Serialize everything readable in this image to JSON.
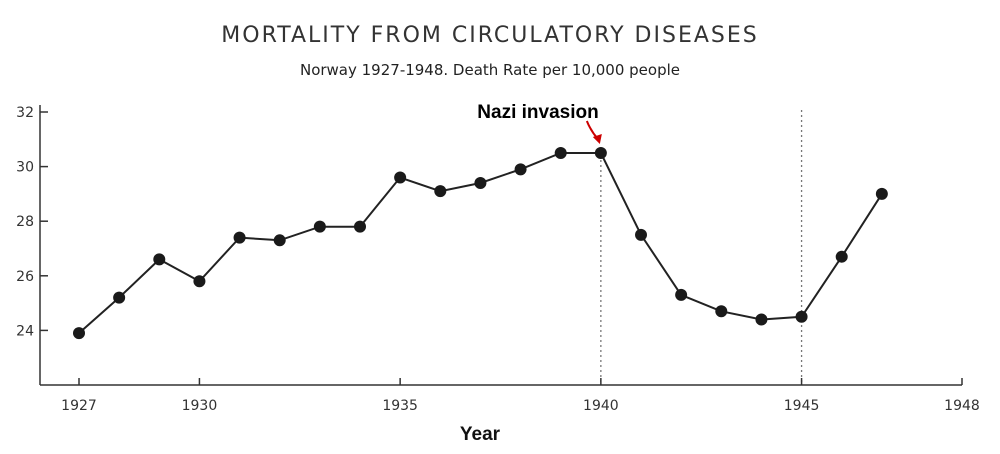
{
  "chart_data": {
    "type": "line",
    "title": "MORTALITY FROM CIRCULATORY DISEASES",
    "subtitle": "Norway 1927-1948. Death Rate per 10,000 people",
    "xlabel": "Year",
    "ylabel": "",
    "xlim": [
      1927,
      1948
    ],
    "ylim": [
      22,
      32
    ],
    "x_ticks": [
      1927,
      1930,
      1935,
      1940,
      1945,
      1948
    ],
    "y_ticks": [
      24,
      26,
      28,
      30,
      32
    ],
    "grid": false,
    "series": [
      {
        "values": [
          [
            1927,
            23.9
          ],
          [
            1928,
            25.2
          ],
          [
            1929,
            26.6
          ],
          [
            1930,
            25.8
          ],
          [
            1931,
            27.4
          ],
          [
            1932,
            27.3
          ],
          [
            1933,
            27.8
          ],
          [
            1934,
            27.8
          ],
          [
            1935,
            29.6
          ],
          [
            1936,
            29.1
          ],
          [
            1937,
            29.4
          ],
          [
            1938,
            29.9
          ],
          [
            1939,
            30.5
          ],
          [
            1940,
            30.5
          ],
          [
            1941,
            27.5
          ],
          [
            1942,
            25.3
          ],
          [
            1943,
            24.7
          ],
          [
            1944,
            24.4
          ],
          [
            1945,
            24.5
          ],
          [
            1946,
            26.7
          ],
          [
            1947,
            29.0
          ]
        ]
      }
    ],
    "reference_lines": [
      1940,
      1945
    ],
    "annotations": [
      {
        "text": "Nazi invasion",
        "x": 1940,
        "y": 30.5
      }
    ],
    "colors": {
      "line": "#222222",
      "marker": "#1a1a1a",
      "arrow": "#cc0000",
      "ref_line": "#777777"
    }
  }
}
